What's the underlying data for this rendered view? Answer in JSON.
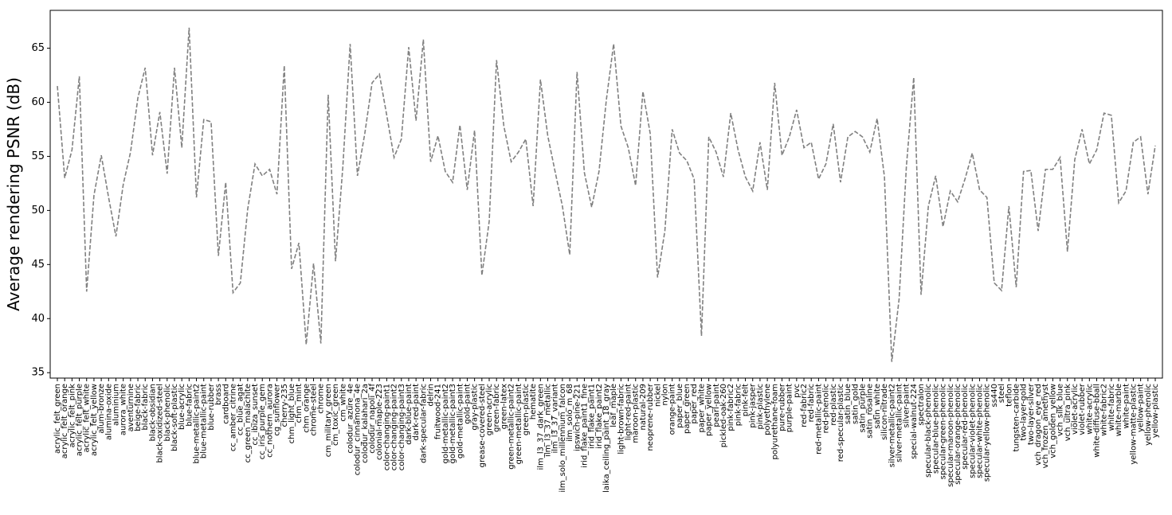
{
  "chart_data": {
    "type": "line",
    "y_label": "Average rendering PSNR (dB)",
    "categories": [
      "acrylic_felt_green",
      "acrylic_felt_orange",
      "acrylic_felt_pink",
      "acrylic_felt_purple",
      "acrylic_felt_white",
      "acrylic_felt_yellow",
      "alum-bronze",
      "alumina-oxide",
      "aluminium",
      "aurora_white",
      "aventurnine",
      "beige-fabric",
      "black-fabric",
      "black-obsidian",
      "black-oxidized-steel",
      "black-phenolic",
      "black-soft-plastic",
      "blue-acrylic",
      "blue-fabric",
      "blue-metallic-paint2",
      "blue-metallic-paint",
      "blue-rubber",
      "brass",
      "cardboard",
      "cc_amber_citrine",
      "cc_blue_agat",
      "cc_green_malachite",
      "cc_ibiza_sunset",
      "cc_iris_purple_gem",
      "cc_nothern_aurora",
      "cg_sunflower",
      "cherry-235",
      "chm_light_blue",
      "chm_mint",
      "chm_orange",
      "chrome-steel",
      "chrome",
      "cm_military_green",
      "cm_toxic_green",
      "cm_white",
      "colodur_azure_4e",
      "colodur_cinnamona_4e",
      "colodur_kalahari_2a",
      "colodur_napoli_4f",
      "colonial-maple-223",
      "color-changing-paint1",
      "color-changing-paint2",
      "color-changing-paint3",
      "dark-blue-paint",
      "dark-red-paint",
      "dark-specular-fabric",
      "delrin",
      "fruitwood-241",
      "gold-metallic-paint2",
      "gold-metallic-paint3",
      "gold-metallic-paint",
      "gold-paint",
      "gray-plastic",
      "grease-covered-steel",
      "green-acrylic",
      "green-fabric",
      "green-latex",
      "green-metallic-paint2",
      "green-metallic-paint",
      "green-plastic",
      "hematite",
      "ilm_l3_37_dark_green",
      "ilm_l3_37_metallic",
      "ilm_l3_37_variant",
      "ilm_solo_millennium_falcon",
      "ilm_solo_m_68",
      "ipswich-pine-221",
      "irid_flake_paint1_fine",
      "irid_flake_paint1",
      "irid_flake_paint2",
      "laika_ceiling_paint_18_gray",
      "leaf_maple",
      "light-brown-fabric",
      "light-red-paint",
      "maroon-plastic",
      "natural-209",
      "neoprene-rubber",
      "nickel",
      "nylon",
      "orange-paint",
      "paper_blue",
      "paper_green",
      "paper_red",
      "paper_white",
      "paper_yellow",
      "pearl-paint",
      "pickled-oak-260",
      "pink-fabric2",
      "pink-fabric",
      "pink-felt",
      "pink-jasper",
      "pink-plastic",
      "polyethylene",
      "polyurethane-foam",
      "pure-rubber",
      "purple-paint",
      "pvc",
      "red-fabric2",
      "red-fabric",
      "red-metallic-paint",
      "red-phenolic",
      "red-plastic",
      "red-specular-plastic",
      "satin_blue",
      "satin_gold",
      "satin_purple",
      "satin_rosaline",
      "satin_white",
      "silicon-nitrade",
      "silver-metallic-paint2",
      "silver-metallic-paint",
      "silver-paint",
      "special-walnut-224",
      "spectralon",
      "specular-black-phenolic",
      "specular-blue-phenolic",
      "specular-green-phenolic",
      "specular-maroon-phenolic",
      "specular-orange-phenolic",
      "specular-red-phenolic",
      "specular-violet-phenolic",
      "specular-white-phenolic",
      "specular-yellow-phenolic",
      "ss440",
      "steel",
      "teflon",
      "tungsten-carbide",
      "two-layer-gold",
      "two-layer-silver",
      "vch_dragon_eye_red",
      "vch_frozen_amethyst",
      "vch_golden_yellow",
      "vch_silk_blue",
      "vch_ultra_pink",
      "violet-acrylic",
      "violet-rubber",
      "white-acrylic",
      "white-diffuse-bball",
      "white-fabric2",
      "white-fabric",
      "white-marble",
      "white-paint",
      "yellow-matte-plastic",
      "yellow-paint",
      "yellow-phenolic",
      "yellow-plastic"
    ],
    "values": [
      61.5,
      53.0,
      55.6,
      62.4,
      42.5,
      51.4,
      55.1,
      51.2,
      47.6,
      52.4,
      55.4,
      60.4,
      63.2,
      55.1,
      59.1,
      53.4,
      63.2,
      55.8,
      66.9,
      51.2,
      58.4,
      58.2,
      45.8,
      52.6,
      42.4,
      43.3,
      50.1,
      54.3,
      53.2,
      53.8,
      51.5,
      63.4,
      44.6,
      47.0,
      37.6,
      45.1,
      37.7,
      60.7,
      45.3,
      54.0,
      65.4,
      53.2,
      57.1,
      61.8,
      62.6,
      58.8,
      54.9,
      56.6,
      65.1,
      58.3,
      65.8,
      54.5,
      56.9,
      53.6,
      52.6,
      57.9,
      51.9,
      57.4,
      44.0,
      49.0,
      63.9,
      57.8,
      54.5,
      55.4,
      56.6,
      50.4,
      62.1,
      56.9,
      53.6,
      50.4,
      45.9,
      62.8,
      53.5,
      50.3,
      53.6,
      60.2,
      65.4,
      57.8,
      55.8,
      52.3,
      61.0,
      57.1,
      43.8,
      48.1,
      57.5,
      55.3,
      54.6,
      52.9,
      38.4,
      56.8,
      55.4,
      53.1,
      59.0,
      55.6,
      53.1,
      51.8,
      56.3,
      51.9,
      61.8,
      55.1,
      56.8,
      59.3,
      55.8,
      56.3,
      52.9,
      54.3,
      58.0,
      52.6,
      56.8,
      57.3,
      56.8,
      55.4,
      58.5,
      53.1,
      36.0,
      41.8,
      54.1,
      62.3,
      42.2,
      50.4,
      53.2,
      48.5,
      51.8,
      50.8,
      52.9,
      55.3,
      51.9,
      51.2,
      43.3,
      42.6,
      50.4,
      42.9,
      53.6,
      53.7,
      48.1,
      53.8,
      53.8,
      54.9,
      46.2,
      54.7,
      57.5,
      54.3,
      55.6,
      59.0,
      58.8,
      50.7,
      51.8,
      56.3,
      56.8,
      51.5,
      56.0
    ],
    "color": "#808080",
    "line_style": "dashed",
    "ylim": [
      34.5,
      68.5
    ],
    "yticks": [
      35,
      40,
      45,
      50,
      55,
      60,
      65
    ]
  }
}
